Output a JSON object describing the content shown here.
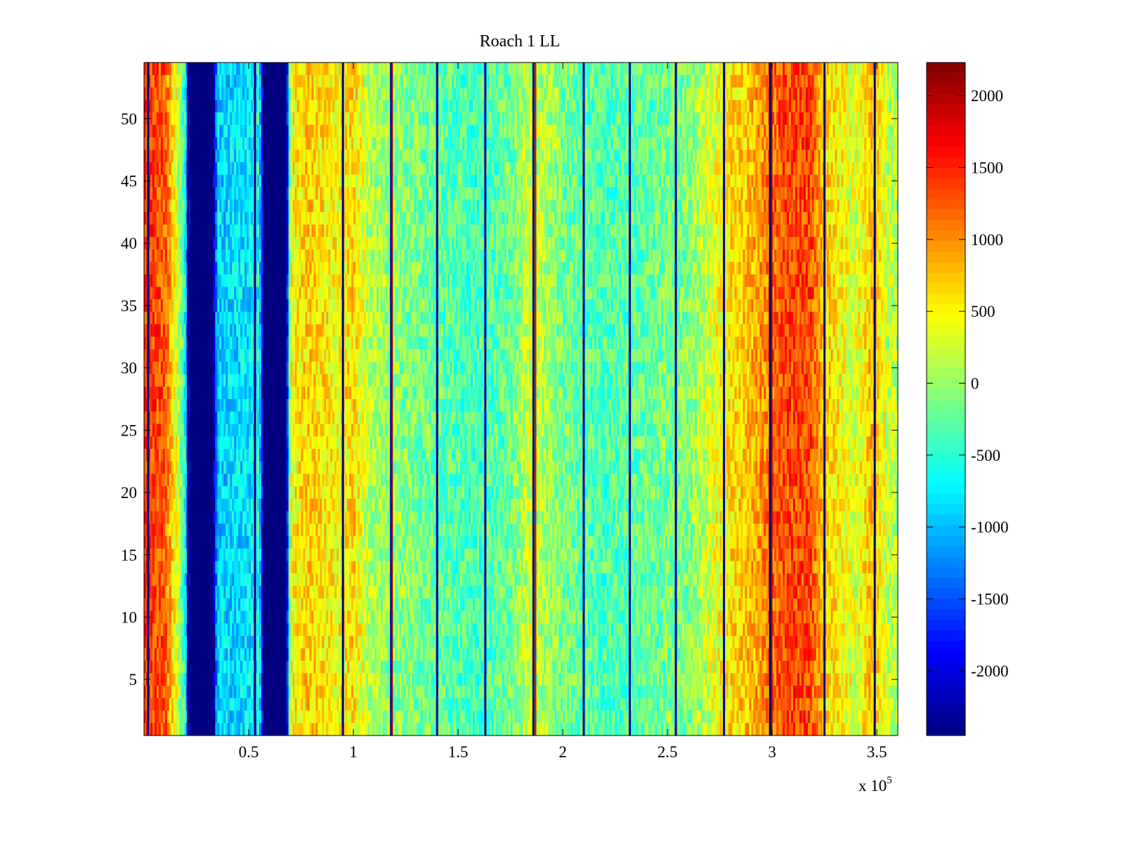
{
  "chart_data": {
    "type": "heatmap",
    "title": "Roach 1 LL",
    "xlabel": "",
    "ylabel": "",
    "x_range": [
      0,
      360000
    ],
    "y_range": [
      0.5,
      54.5
    ],
    "x_multiplier_label": "x 10",
    "x_multiplier_exponent": "5",
    "x_ticks": [
      {
        "value": 50000,
        "label": "0.5"
      },
      {
        "value": 100000,
        "label": "1"
      },
      {
        "value": 150000,
        "label": "1.5"
      },
      {
        "value": 200000,
        "label": "2"
      },
      {
        "value": 250000,
        "label": "2.5"
      },
      {
        "value": 300000,
        "label": "3"
      },
      {
        "value": 350000,
        "label": "3.5"
      }
    ],
    "y_ticks": [
      {
        "value": 5,
        "label": "5"
      },
      {
        "value": 10,
        "label": "10"
      },
      {
        "value": 15,
        "label": "15"
      },
      {
        "value": 20,
        "label": "20"
      },
      {
        "value": 25,
        "label": "25"
      },
      {
        "value": 30,
        "label": "30"
      },
      {
        "value": 35,
        "label": "35"
      },
      {
        "value": 40,
        "label": "40"
      },
      {
        "value": 45,
        "label": "45"
      },
      {
        "value": 50,
        "label": "50"
      }
    ],
    "colormap": "jet",
    "color_range": [
      -2450,
      2230
    ],
    "colorbar_ticks": [
      {
        "value": 2000,
        "label": "2000"
      },
      {
        "value": 1500,
        "label": "1500"
      },
      {
        "value": 1000,
        "label": "1000"
      },
      {
        "value": 500,
        "label": "500"
      },
      {
        "value": 0,
        "label": "0"
      },
      {
        "value": -500,
        "label": "-500"
      },
      {
        "value": -1000,
        "label": "-1000"
      },
      {
        "value": -1500,
        "label": "-1500"
      },
      {
        "value": -2000,
        "label": "-2000"
      }
    ],
    "rows": 54,
    "column_profile": [
      {
        "x": 0,
        "v": 1400
      },
      {
        "x": 10000,
        "v": 1250
      },
      {
        "x": 16000,
        "v": 300
      },
      {
        "x": 20000,
        "v": -700
      },
      {
        "x": 22000,
        "v": -2450
      },
      {
        "x": 33000,
        "v": -2450
      },
      {
        "x": 35000,
        "v": -900
      },
      {
        "x": 50000,
        "v": -800
      },
      {
        "x": 55000,
        "v": -600
      },
      {
        "x": 57000,
        "v": -2450
      },
      {
        "x": 68000,
        "v": -2450
      },
      {
        "x": 70000,
        "v": 400
      },
      {
        "x": 78000,
        "v": 700
      },
      {
        "x": 92000,
        "v": 450
      },
      {
        "x": 100000,
        "v": 650
      },
      {
        "x": 108000,
        "v": 100
      },
      {
        "x": 130000,
        "v": -150
      },
      {
        "x": 160000,
        "v": -400
      },
      {
        "x": 175000,
        "v": -200
      },
      {
        "x": 185000,
        "v": 300
      },
      {
        "x": 200000,
        "v": -150
      },
      {
        "x": 220000,
        "v": -350
      },
      {
        "x": 260000,
        "v": -100
      },
      {
        "x": 275000,
        "v": 450
      },
      {
        "x": 290000,
        "v": 800
      },
      {
        "x": 305000,
        "v": 1300
      },
      {
        "x": 318000,
        "v": 1350
      },
      {
        "x": 325000,
        "v": 700
      },
      {
        "x": 340000,
        "v": 300
      },
      {
        "x": 348000,
        "v": 800
      },
      {
        "x": 355000,
        "v": 200
      },
      {
        "x": 360000,
        "v": 100
      }
    ],
    "vertical_stripes": [
      {
        "x": 2000,
        "v": -2400
      },
      {
        "x": 21000,
        "v": -2400
      },
      {
        "x": 53000,
        "v": -2400
      },
      {
        "x": 95000,
        "v": -2400
      },
      {
        "x": 118000,
        "v": -2200
      },
      {
        "x": 140000,
        "v": -2300
      },
      {
        "x": 163000,
        "v": -2300
      },
      {
        "x": 186000,
        "v": -2400
      },
      {
        "x": 210000,
        "v": -2300
      },
      {
        "x": 232000,
        "v": -2300
      },
      {
        "x": 254000,
        "v": -2300
      },
      {
        "x": 277000,
        "v": -2300
      },
      {
        "x": 299000,
        "v": -2400
      },
      {
        "x": 325000,
        "v": -2400
      },
      {
        "x": 349000,
        "v": -2400
      }
    ],
    "red_streaks": [
      {
        "x": 118500,
        "v": 2100
      },
      {
        "x": 187000,
        "v": 2000
      },
      {
        "x": 299800,
        "v": 2100
      }
    ]
  }
}
